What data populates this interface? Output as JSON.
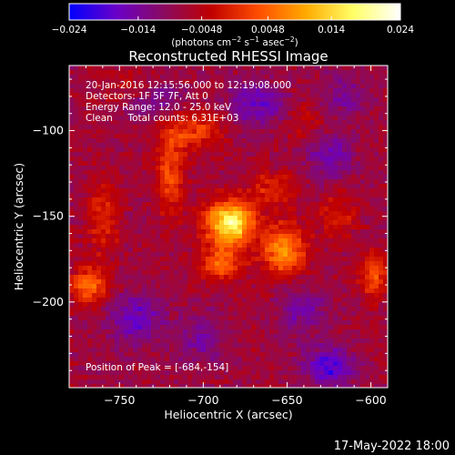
{
  "chart_data": {
    "type": "heatmap",
    "title": "Reconstructed RHESSI Image",
    "xlabel": "Heliocentric X (arcsec)",
    "ylabel": "Heliocentric Y (arcsec)",
    "xlim": [
      -780,
      -590
    ],
    "ylim": [
      -250,
      -62
    ],
    "x_ticks": [
      -750,
      -700,
      -650,
      -600
    ],
    "x_tick_labels": [
      "−750",
      "−700",
      "−650",
      "−600"
    ],
    "y_ticks": [
      -100,
      -150,
      -200
    ],
    "y_tick_labels": [
      "−100",
      "−150",
      "−200"
    ],
    "colorbar": {
      "range": [
        -0.024,
        0.024
      ],
      "ticks": [
        -0.024,
        -0.014,
        -0.0048,
        0.0048,
        0.014,
        0.024
      ],
      "tick_labels": [
        "−0.024",
        "−0.014",
        "−0.0048",
        "0.0048",
        "0.014",
        "0.024"
      ],
      "unit_prefix": "(photons cm",
      "unit_exp1": "−2",
      "unit_mid1": " s",
      "unit_exp2": "−1",
      "unit_mid2": " asec",
      "unit_exp3": "−2",
      "unit_suffix": ")",
      "colors": [
        "#0000ff",
        "#6a00c8",
        "#8a0a60",
        "#c00000",
        "#ff4d00",
        "#ffaa00",
        "#ffff66",
        "#ffffff"
      ]
    },
    "annotations": [
      "20-Jan-2016 12:15:56.000 to 12:19:08.000",
      "Detectors: 1F 5F 7F, Att 0",
      "Energy Range: 12.0 - 25.0 keV",
      "Clean     Total counts: 6.31E+03"
    ],
    "peak_label": "Position of Peak = [-684,-154]",
    "peak": [
      -684,
      -154
    ],
    "sources": [
      {
        "x": -684,
        "y": -154,
        "amp": 0.026,
        "sx": 10,
        "sy": 9
      },
      {
        "x": -652,
        "y": -170,
        "amp": 0.016,
        "sx": 9,
        "sy": 10
      },
      {
        "x": -690,
        "y": -178,
        "amp": 0.012,
        "sx": 9,
        "sy": 7
      },
      {
        "x": -720,
        "y": -125,
        "amp": 0.01,
        "sx": 6,
        "sy": 18
      },
      {
        "x": -705,
        "y": -100,
        "amp": 0.009,
        "sx": 12,
        "sy": 8
      },
      {
        "x": -768,
        "y": -190,
        "amp": 0.012,
        "sx": 8,
        "sy": 8
      },
      {
        "x": -598,
        "y": -185,
        "amp": 0.011,
        "sx": 6,
        "sy": 9
      },
      {
        "x": -760,
        "y": -150,
        "amp": 0.008,
        "sx": 7,
        "sy": 14
      },
      {
        "x": -660,
        "y": -135,
        "amp": 0.007,
        "sx": 10,
        "sy": 8
      },
      {
        "x": -620,
        "y": -150,
        "amp": 0.006,
        "sx": 8,
        "sy": 10
      },
      {
        "x": -740,
        "y": -75,
        "amp": 0.006,
        "sx": 12,
        "sy": 6
      },
      {
        "x": -640,
        "y": -95,
        "amp": 0.004,
        "sx": 10,
        "sy": 8
      },
      {
        "x": -730,
        "y": -80,
        "amp": -0.008,
        "sx": 12,
        "sy": 8
      },
      {
        "x": -668,
        "y": -85,
        "amp": -0.009,
        "sx": 12,
        "sy": 10
      },
      {
        "x": -740,
        "y": -210,
        "amp": -0.009,
        "sx": 12,
        "sy": 10
      },
      {
        "x": -700,
        "y": -222,
        "amp": -0.006,
        "sx": 10,
        "sy": 10
      },
      {
        "x": -625,
        "y": -238,
        "amp": -0.012,
        "sx": 10,
        "sy": 8
      },
      {
        "x": -625,
        "y": -115,
        "amp": -0.008,
        "sx": 10,
        "sy": 10
      },
      {
        "x": -640,
        "y": -205,
        "amp": -0.007,
        "sx": 10,
        "sy": 10
      },
      {
        "x": -615,
        "y": -80,
        "amp": -0.006,
        "sx": 10,
        "sy": 10
      }
    ]
  },
  "footer": {
    "timestamp": "17-May-2022 18:00"
  }
}
